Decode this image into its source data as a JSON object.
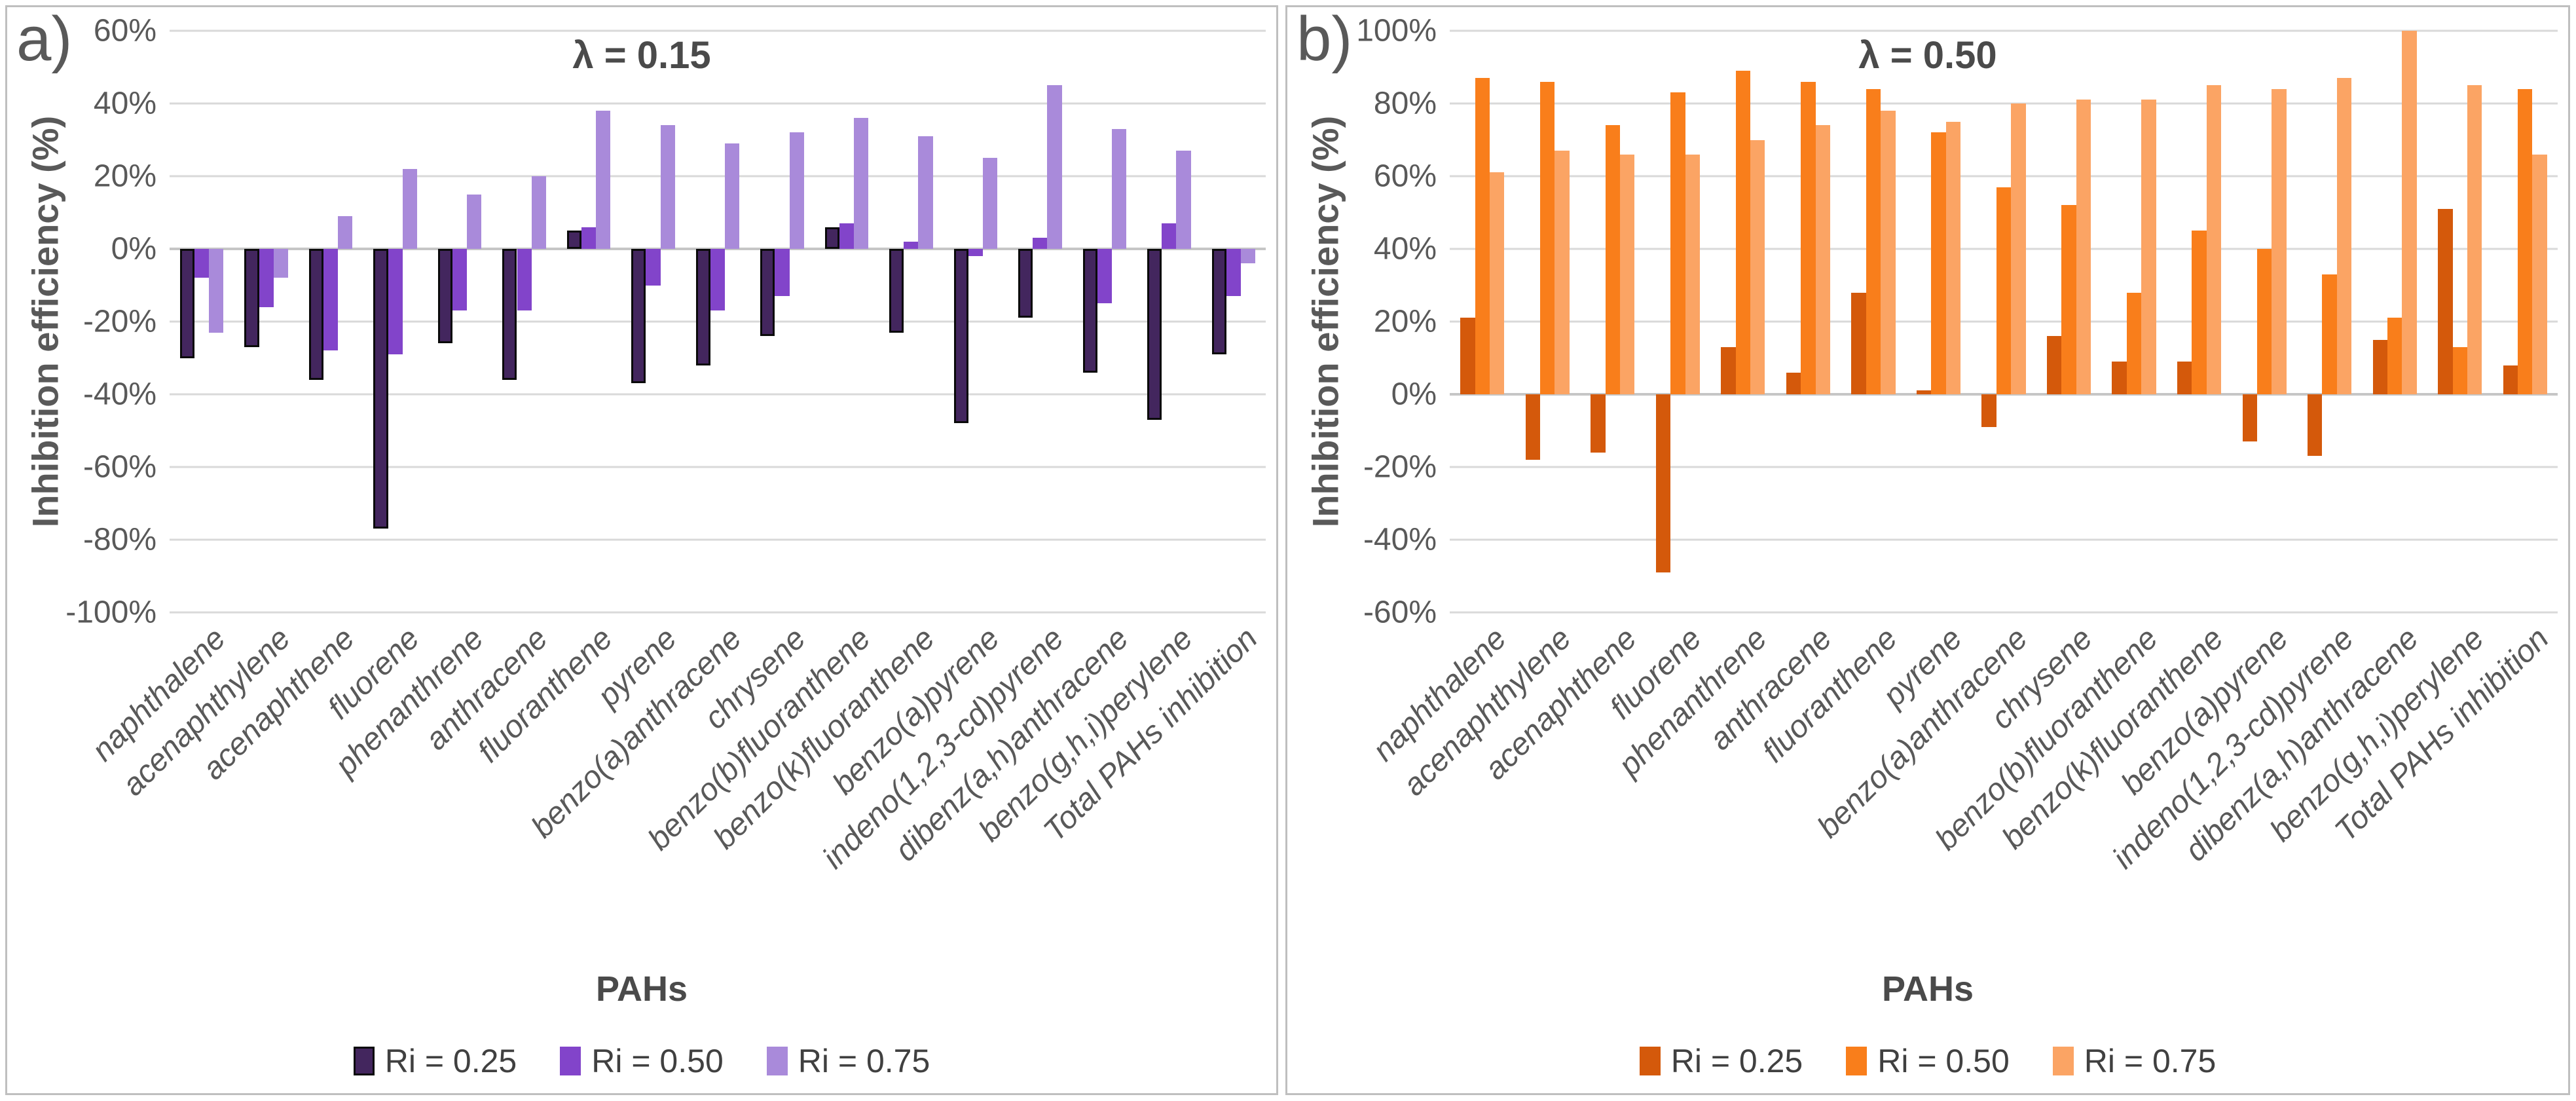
{
  "chart_data": [
    {
      "type": "bar",
      "panel_label": "a)",
      "title": "λ = 0.15",
      "xlabel": "PAHs",
      "ylabel": "Inhibition efficiency (%)",
      "ylim": [
        -100,
        60
      ],
      "ytick_step": 20,
      "y_ticks": [
        "60%",
        "40%",
        "20%",
        "0%",
        "-20%",
        "-40%",
        "-60%",
        "-80%",
        "-100%"
      ],
      "grid": true,
      "legend_position": "bottom",
      "categories": [
        "naphthalene",
        "acenaphthylene",
        "acenaphthene",
        "fluorene",
        "phenanthrene",
        "anthracene",
        "fluoranthene",
        "pyrene",
        "benzo(a)anthracene",
        "chrysene",
        "benzo(b)fluoranthene",
        "benzo(k)fluoranthene",
        "benzo(a)pyrene",
        "indeno(1,2,3-cd)pyrene",
        "dibenz(a,h)anthracene",
        "benzo(g,h,i)perylene",
        "Total PAHs inhibition"
      ],
      "series": [
        {
          "name": "Ri = 0.25",
          "color": "#43265e",
          "border": "#0a0a0a",
          "values": [
            -30,
            -27,
            -36,
            -77,
            -26,
            -36,
            5,
            -37,
            -32,
            -24,
            6,
            -23,
            -48,
            -19,
            -34,
            -47,
            -29
          ]
        },
        {
          "name": "Ri = 0.50",
          "color": "#8244ca",
          "values": [
            -8,
            -16,
            -28,
            -29,
            -17,
            -17,
            6,
            -10,
            -17,
            -13,
            7,
            2,
            -2,
            3,
            -15,
            7,
            -13
          ]
        },
        {
          "name": "Ri = 0.75",
          "color": "#a98ada",
          "values": [
            -23,
            -8,
            9,
            22,
            15,
            20,
            38,
            34,
            29,
            32,
            36,
            31,
            25,
            45,
            33,
            27,
            -4
          ]
        }
      ]
    },
    {
      "type": "bar",
      "panel_label": "b)",
      "title": "λ = 0.50",
      "xlabel": "PAHs",
      "ylabel": "Inhibition efficiency (%)",
      "ylim": [
        -60,
        100
      ],
      "ytick_step": 20,
      "y_ticks": [
        "100%",
        "80%",
        "60%",
        "40%",
        "20%",
        "0%",
        "-20%",
        "-40%",
        "-60%"
      ],
      "grid": true,
      "legend_position": "bottom",
      "categories": [
        "naphthalene",
        "acenaphthylene",
        "acenaphthene",
        "fluorene",
        "phenanthrene",
        "anthracene",
        "fluoranthene",
        "pyrene",
        "benzo(a)anthracene",
        "chrysene",
        "benzo(b)fluoranthene",
        "benzo(k)fluoranthene",
        "benzo(a)pyrene",
        "indeno(1,2,3-cd)pyrene",
        "dibenz(a,h)anthracene",
        "benzo(g,h,i)perylene",
        "Total PAHs inhibition"
      ],
      "series": [
        {
          "name": "Ri = 0.25",
          "color": "#d4590b",
          "values": [
            21,
            -18,
            -16,
            -49,
            13,
            6,
            28,
            1,
            -9,
            16,
            9,
            9,
            -13,
            -17,
            15,
            51,
            8
          ]
        },
        {
          "name": "Ri = 0.50",
          "color": "#f97e1b",
          "values": [
            87,
            86,
            74,
            83,
            89,
            86,
            84,
            72,
            57,
            52,
            28,
            45,
            40,
            33,
            21,
            13,
            84
          ]
        },
        {
          "name": "Ri = 0.75",
          "color": "#fba464",
          "values": [
            61,
            67,
            66,
            66,
            70,
            74,
            78,
            75,
            80,
            81,
            81,
            85,
            84,
            87,
            100,
            85,
            66
          ]
        }
      ]
    }
  ]
}
